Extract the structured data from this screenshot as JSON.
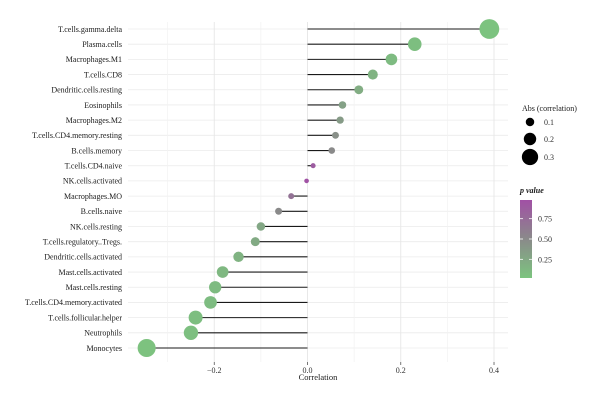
{
  "chart_data": {
    "type": "lollipop",
    "xlabel": "Correlation",
    "xlim": [
      -0.385,
      0.43
    ],
    "x_ticks": [
      -0.2,
      0.0,
      0.2,
      0.4
    ],
    "x_tick_labels": [
      "−0.2",
      "0.0",
      "0.2",
      "0.4"
    ],
    "grid": true,
    "points": [
      {
        "label": "T.cells.gamma.delta",
        "r": 0.39,
        "p": 0.01
      },
      {
        "label": "Plasma.cells",
        "r": 0.23,
        "p": 0.05
      },
      {
        "label": "Macrophages.M1",
        "r": 0.18,
        "p": 0.08
      },
      {
        "label": "T.cells.CD8",
        "r": 0.14,
        "p": 0.15
      },
      {
        "label": "Dendritic.cells.resting",
        "r": 0.11,
        "p": 0.2
      },
      {
        "label": "Eosinophils",
        "r": 0.075,
        "p": 0.3
      },
      {
        "label": "Macrophages.M2",
        "r": 0.07,
        "p": 0.35
      },
      {
        "label": "T.cells.CD4.memory.resting",
        "r": 0.06,
        "p": 0.45
      },
      {
        "label": "B.cells.memory",
        "r": 0.052,
        "p": 0.5
      },
      {
        "label": "T.cells.CD4.naive",
        "r": 0.012,
        "p": 0.9
      },
      {
        "label": "NK.cells.activated",
        "r": -0.002,
        "p": 0.98
      },
      {
        "label": "Macrophages.MO",
        "r": -0.035,
        "p": 0.7
      },
      {
        "label": "B.cells.naive",
        "r": -0.062,
        "p": 0.5
      },
      {
        "label": "NK.cells.resting",
        "r": -0.1,
        "p": 0.25
      },
      {
        "label": "T.cells.regulatory..Tregs.",
        "r": -0.112,
        "p": 0.22
      },
      {
        "label": "Dendritic.cells.activated",
        "r": -0.148,
        "p": 0.15
      },
      {
        "label": "Mast.cells.activated",
        "r": -0.182,
        "p": 0.1
      },
      {
        "label": "Mast.cells.resting",
        "r": -0.198,
        "p": 0.08
      },
      {
        "label": "T.cells.CD4.memory.activated",
        "r": -0.208,
        "p": 0.07
      },
      {
        "label": "T.cells.follicular.helper",
        "r": -0.24,
        "p": 0.05
      },
      {
        "label": "Neutrophils",
        "r": -0.25,
        "p": 0.04
      },
      {
        "label": "Monocytes",
        "r": -0.345,
        "p": 0.02
      }
    ],
    "legend_size": {
      "title": "Abs (correlation)",
      "entries": [
        {
          "value": 0.1,
          "label": "0.1"
        },
        {
          "value": 0.2,
          "label": "0.2"
        },
        {
          "value": 0.3,
          "label": "0.3"
        }
      ]
    },
    "legend_color": {
      "title": "p value",
      "ticks": [
        {
          "value": 0.75,
          "label": "0.75"
        },
        {
          "value": 0.5,
          "label": "0.50"
        },
        {
          "value": 0.25,
          "label": "0.25"
        }
      ],
      "low_color": "#7cc47f",
      "mid_color": "#8a8a8a",
      "high_color": "#a150a5"
    }
  }
}
